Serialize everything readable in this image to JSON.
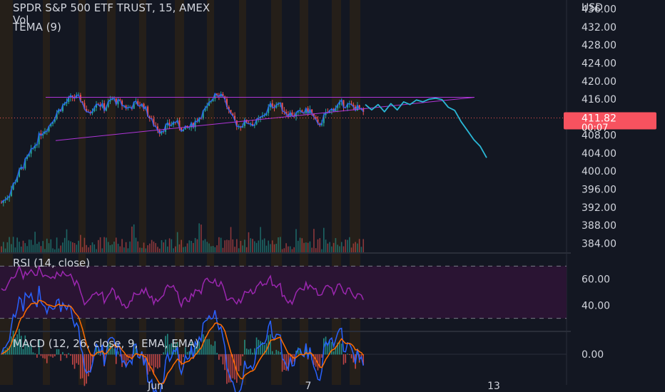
{
  "header": {
    "title": "SPDR S&P 500 ETF TRUST, 15, AMEX",
    "vol_label": "Vol",
    "tema_label": "TEMA (9)"
  },
  "currency": "USD",
  "price_axis": {
    "ticks": [
      "436.00",
      "432.00",
      "428.00",
      "424.00",
      "420.00",
      "416.00",
      "412.00",
      "408.00",
      "404.00",
      "400.00",
      "396.00",
      "392.00",
      "388.00",
      "384.00"
    ]
  },
  "last_price": {
    "value": "411.82",
    "countdown": "00:07",
    "color": "#f7525f"
  },
  "rsi_panel": {
    "label": "RSI (14, close)",
    "ticks": [
      "60.00",
      "40.00"
    ],
    "color": "#9c27b0"
  },
  "macd_panel": {
    "label": "MACD (12, 26, close, 9, EMA, EMA)",
    "ticks": [
      "0.00"
    ]
  },
  "time_axis": {
    "labels": [
      "Jun",
      "7",
      "13"
    ]
  },
  "colors": {
    "background": "#131722",
    "up": "#26a69a",
    "down": "#ef5350",
    "session_band": "#2a2218",
    "trendline": "#b035d8",
    "projection": "#2ab7d6",
    "macd_line": "#2962ff",
    "signal_line": "#ff6d00",
    "rsi_fill": "#2a1433"
  },
  "chart_data": {
    "type": "candlestick",
    "price_range": [
      382,
      438
    ],
    "rsi_range": [
      20,
      80
    ],
    "close_anchors": [
      [
        0,
        393
      ],
      [
        2,
        395
      ],
      [
        4,
        399
      ],
      [
        6,
        402
      ],
      [
        8,
        405
      ],
      [
        10,
        408.5
      ],
      [
        12,
        410
      ],
      [
        14,
        413
      ],
      [
        16,
        415
      ],
      [
        18,
        416.5
      ],
      [
        20,
        416
      ],
      [
        22,
        412.5
      ],
      [
        24,
        415.5
      ],
      [
        26,
        414
      ],
      [
        28,
        416
      ],
      [
        30,
        415
      ],
      [
        32,
        414
      ],
      [
        34,
        415
      ],
      [
        36,
        414.5
      ],
      [
        38,
        411
      ],
      [
        40,
        409
      ],
      [
        42,
        410
      ],
      [
        44,
        411
      ],
      [
        46,
        409
      ],
      [
        48,
        410
      ],
      [
        50,
        412
      ],
      [
        52,
        414
      ],
      [
        54,
        417.5
      ],
      [
        56,
        417
      ],
      [
        58,
        412
      ],
      [
        60,
        410
      ],
      [
        62,
        411
      ],
      [
        64,
        410.5
      ],
      [
        66,
        412
      ],
      [
        68,
        414.5
      ],
      [
        70,
        415
      ],
      [
        72,
        413
      ],
      [
        74,
        412.5
      ],
      [
        76,
        413
      ],
      [
        78,
        413.5
      ],
      [
        80,
        410
      ],
      [
        82,
        412.5
      ],
      [
        84,
        414
      ],
      [
        86,
        415
      ],
      [
        88,
        414.5
      ],
      [
        90,
        414
      ],
      [
        92,
        412.5
      ]
    ],
    "projection": [
      [
        414.8,
        413.6
      ],
      [
        414.8,
        413.2
      ],
      [
        415,
        413.6
      ],
      [
        415.4,
        414.8
      ],
      [
        415.8,
        415.4
      ],
      [
        416,
        416.2
      ],
      [
        415.9,
        414.2
      ],
      [
        413.5,
        411
      ],
      [
        409,
        407
      ],
      [
        405.5,
        403
      ]
    ],
    "trendline_top": [
      416.4,
      416.4
    ],
    "trendline_support": [
      406.8,
      416.4
    ]
  }
}
